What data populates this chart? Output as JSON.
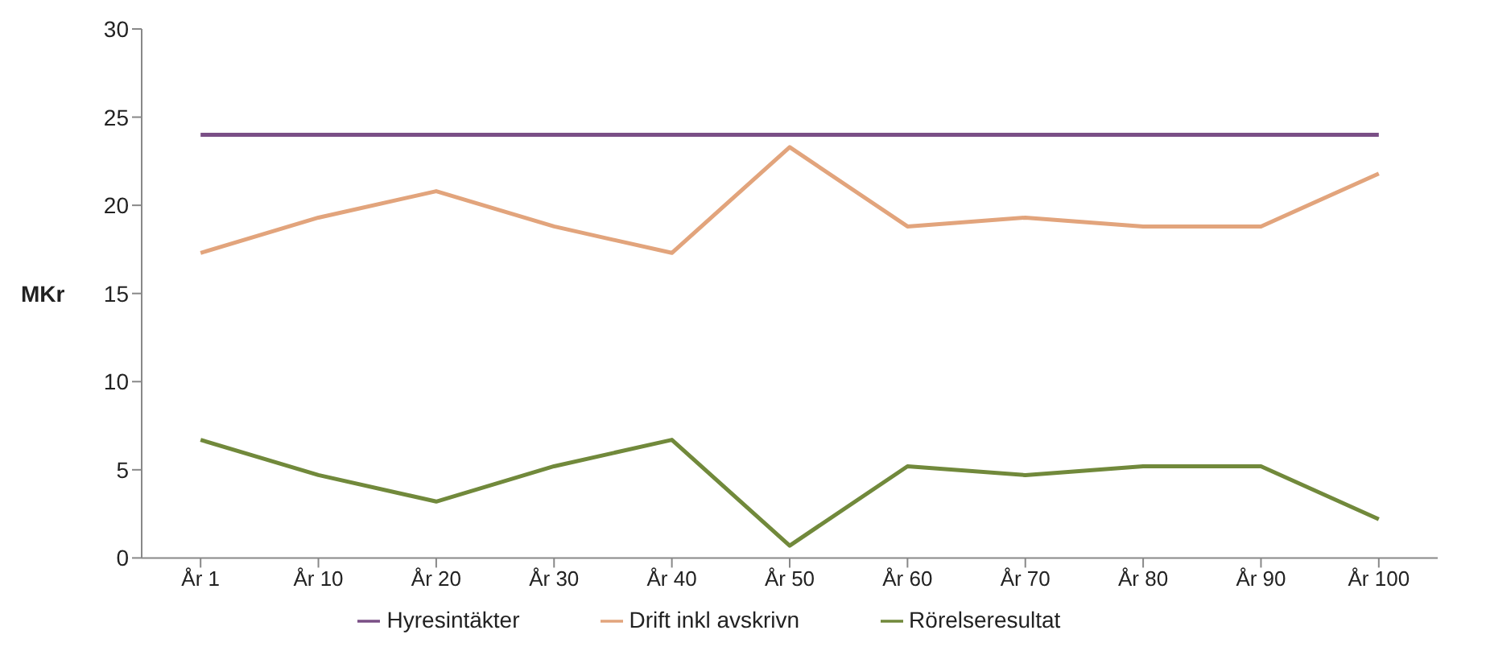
{
  "chart_data": {
    "type": "line",
    "ylabel": "MKr",
    "categories": [
      "År 1",
      "År 10",
      "År 20",
      "År 30",
      "År 40",
      "År 50",
      "År 60",
      "År 70",
      "År 80",
      "År 90",
      "År 100"
    ],
    "series": [
      {
        "name": "Hyresintäkter",
        "color": "#7a4f86",
        "values": [
          24,
          24,
          24,
          24,
          24,
          24,
          24,
          24,
          24,
          24,
          24
        ]
      },
      {
        "name": "Drift inkl avskrivn",
        "color": "#e2a47c",
        "values": [
          17.3,
          19.3,
          20.8,
          18.8,
          17.3,
          23.3,
          18.8,
          19.3,
          18.8,
          18.8,
          21.8
        ]
      },
      {
        "name": "Rörelseresultat",
        "color": "#71893b",
        "values": [
          6.7,
          4.7,
          3.2,
          5.2,
          6.7,
          0.7,
          5.2,
          4.7,
          5.2,
          5.2,
          2.2
        ]
      }
    ],
    "ylim": [
      0,
      30
    ],
    "yticks": [
      0,
      5,
      10,
      15,
      20,
      25,
      30
    ],
    "grid": false,
    "legend": "bottom",
    "marker": "none",
    "line_style": "solid"
  }
}
